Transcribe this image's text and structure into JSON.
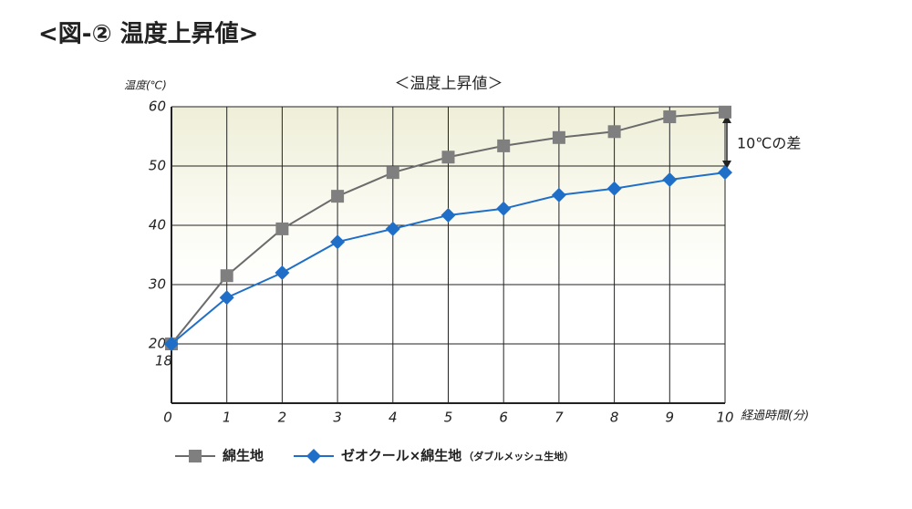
{
  "page_title": "<図-② 温度上昇値>",
  "chart_data": {
    "type": "line",
    "title": "＜温度上昇値＞",
    "y_label": "温度(℃)",
    "x_label": "経過時間(分)",
    "y_start_label": "18",
    "x": [
      0,
      1,
      2,
      3,
      4,
      5,
      6,
      7,
      8,
      9,
      10
    ],
    "xlim": [
      0,
      10
    ],
    "xticks": [
      0,
      1,
      2,
      3,
      4,
      5,
      6,
      7,
      8,
      9,
      10
    ],
    "ylim": [
      10,
      60
    ],
    "yticks": [
      20,
      30,
      40,
      50,
      60
    ],
    "grid": true,
    "series": [
      {
        "name": "綿生地",
        "color": "#6b6b6b",
        "marker": "square",
        "marker_color": "#7f7f7f",
        "values": [
          20,
          31.5,
          39.4,
          44.9,
          48.9,
          51.5,
          53.4,
          54.8,
          55.8,
          58.3,
          59.1
        ]
      },
      {
        "name": "ゼオクール×綿生地",
        "note": "（ダブルメッシュ生地）",
        "color": "#1f6fc8",
        "marker": "diamond",
        "marker_color": "#1f6fc8",
        "values": [
          20,
          27.8,
          32,
          37.2,
          39.4,
          41.7,
          42.8,
          45.1,
          46.2,
          47.7,
          48.9
        ]
      }
    ],
    "annotation": "10℃の差"
  }
}
